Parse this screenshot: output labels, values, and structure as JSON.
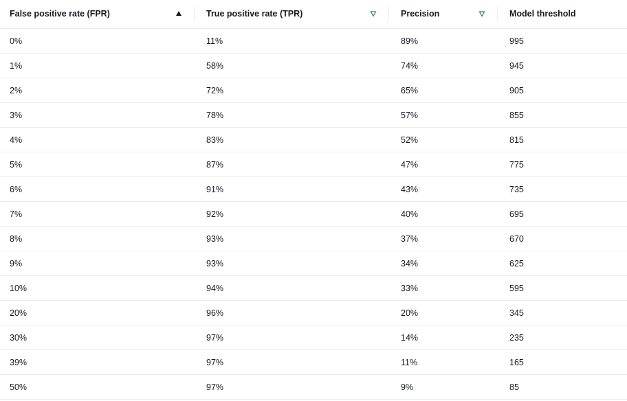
{
  "table": {
    "headers": [
      "False positive rate (FPR)",
      "True positive rate (TPR)",
      "Precision",
      "Model threshold"
    ],
    "rows": [
      [
        "0%",
        "11%",
        "89%",
        "995"
      ],
      [
        "1%",
        "58%",
        "74%",
        "945"
      ],
      [
        "2%",
        "72%",
        "65%",
        "905"
      ],
      [
        "3%",
        "78%",
        "57%",
        "855"
      ],
      [
        "4%",
        "83%",
        "52%",
        "815"
      ],
      [
        "5%",
        "87%",
        "47%",
        "775"
      ],
      [
        "6%",
        "91%",
        "43%",
        "735"
      ],
      [
        "7%",
        "92%",
        "40%",
        "695"
      ],
      [
        "8%",
        "93%",
        "37%",
        "670"
      ],
      [
        "9%",
        "93%",
        "34%",
        "625"
      ],
      [
        "10%",
        "94%",
        "33%",
        "595"
      ],
      [
        "20%",
        "96%",
        "20%",
        "345"
      ],
      [
        "30%",
        "97%",
        "14%",
        "235"
      ],
      [
        "39%",
        "97%",
        "11%",
        "165"
      ],
      [
        "50%",
        "97%",
        "9%",
        "85"
      ]
    ]
  }
}
